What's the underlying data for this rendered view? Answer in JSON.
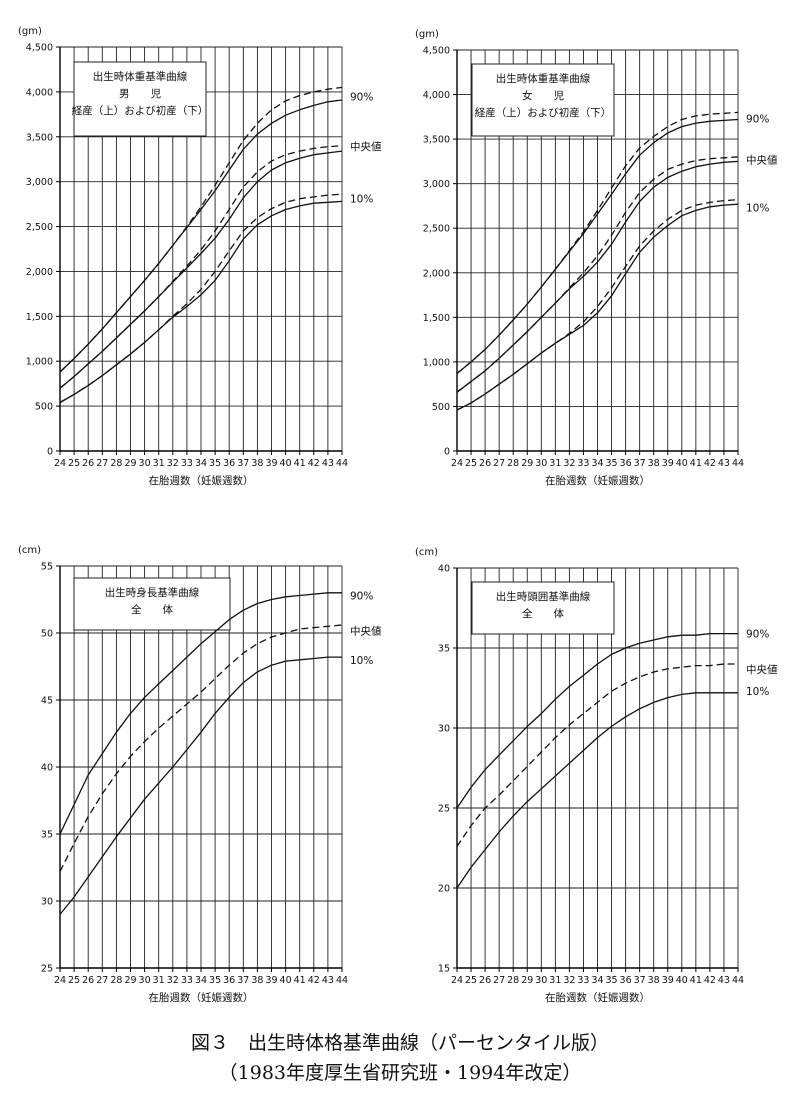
{
  "caption": {
    "line1": "図３　出生時体格基準曲線（パーセンタイル版）",
    "line2": "（1983年度厚生省研究班・1994年改定）"
  },
  "chart_data": [
    {
      "type": "line",
      "unit": "(gm)",
      "title_lines": [
        "出生時体重基準曲線",
        "男　　児",
        "経産（上）および初産（下）"
      ],
      "xlabel": "在胎週数（妊娠週数）",
      "x": [
        24,
        25,
        26,
        27,
        28,
        29,
        30,
        31,
        32,
        33,
        34,
        35,
        36,
        37,
        38,
        39,
        40,
        41,
        42,
        43,
        44
      ],
      "xlim": [
        24,
        44
      ],
      "ylim": [
        0,
        4500
      ],
      "yticks": [
        0,
        500,
        1000,
        1500,
        2000,
        2500,
        3000,
        3500,
        4000,
        4500
      ],
      "ytick_labels": [
        "0",
        "500",
        "1,000",
        "1,500",
        "2,000",
        "2,500",
        "3,000",
        "3,500",
        "4,000",
        "4,500"
      ],
      "grid": true,
      "series": [
        {
          "style": "dashed",
          "values": [
            880,
            1030,
            1190,
            1360,
            1540,
            1720,
            1900,
            2090,
            2290,
            2500,
            2720,
            2960,
            3210,
            3460,
            3650,
            3800,
            3900,
            3960,
            4000,
            4030,
            4050
          ]
        },
        {
          "style": "solid",
          "values": [
            880,
            1030,
            1190,
            1360,
            1540,
            1720,
            1900,
            2090,
            2290,
            2490,
            2690,
            2900,
            3130,
            3360,
            3530,
            3650,
            3740,
            3800,
            3850,
            3890,
            3910
          ]
        },
        {
          "style": "dashed",
          "values": [
            700,
            830,
            970,
            1110,
            1260,
            1410,
            1560,
            1720,
            1890,
            2060,
            2240,
            2450,
            2690,
            2940,
            3110,
            3230,
            3300,
            3340,
            3370,
            3390,
            3400
          ]
        },
        {
          "style": "solid",
          "values": [
            700,
            830,
            970,
            1110,
            1260,
            1410,
            1560,
            1720,
            1880,
            2040,
            2200,
            2370,
            2580,
            2820,
            3000,
            3130,
            3210,
            3260,
            3300,
            3320,
            3340
          ]
        },
        {
          "style": "dashed",
          "values": [
            540,
            630,
            730,
            840,
            960,
            1080,
            1210,
            1350,
            1500,
            1640,
            1800,
            2000,
            2230,
            2450,
            2600,
            2700,
            2770,
            2810,
            2830,
            2850,
            2860
          ]
        },
        {
          "style": "solid",
          "values": [
            540,
            630,
            730,
            840,
            960,
            1080,
            1210,
            1350,
            1490,
            1610,
            1740,
            1900,
            2120,
            2360,
            2520,
            2620,
            2690,
            2730,
            2760,
            2770,
            2780
          ]
        }
      ],
      "curve_labels": [
        {
          "text": "90%",
          "y": 3950
        },
        {
          "text": "中央値",
          "y": 3400
        },
        {
          "text": "10%",
          "y": 2810
        }
      ]
    },
    {
      "type": "line",
      "unit": "(gm)",
      "title_lines": [
        "出生時体重基準曲線",
        "女　　児",
        "経産（上）および初産（下）"
      ],
      "xlabel": "在胎週数（妊娠週数）",
      "x": [
        24,
        25,
        26,
        27,
        28,
        29,
        30,
        31,
        32,
        33,
        34,
        35,
        36,
        37,
        38,
        39,
        40,
        41,
        42,
        43,
        44
      ],
      "xlim": [
        24,
        44
      ],
      "ylim": [
        0,
        4500
      ],
      "yticks": [
        0,
        500,
        1000,
        1500,
        2000,
        2500,
        3000,
        3500,
        4000,
        4500
      ],
      "ytick_labels": [
        "0",
        "500",
        "1,000",
        "1,500",
        "2,000",
        "2,500",
        "3,000",
        "3,500",
        "4,000",
        "4,500"
      ],
      "grid": true,
      "series": [
        {
          "style": "dashed",
          "values": [
            870,
            1000,
            1140,
            1300,
            1470,
            1650,
            1840,
            2040,
            2250,
            2460,
            2700,
            2950,
            3200,
            3400,
            3530,
            3640,
            3720,
            3760,
            3780,
            3790,
            3800
          ]
        },
        {
          "style": "solid",
          "values": [
            870,
            1000,
            1140,
            1300,
            1470,
            1650,
            1840,
            2040,
            2240,
            2440,
            2660,
            2880,
            3110,
            3320,
            3460,
            3570,
            3640,
            3680,
            3700,
            3710,
            3720
          ]
        },
        {
          "style": "dashed",
          "values": [
            660,
            780,
            900,
            1040,
            1190,
            1340,
            1500,
            1660,
            1830,
            2000,
            2190,
            2420,
            2680,
            2900,
            3050,
            3160,
            3220,
            3260,
            3280,
            3290,
            3300
          ]
        },
        {
          "style": "solid",
          "values": [
            660,
            780,
            900,
            1040,
            1190,
            1340,
            1500,
            1660,
            1820,
            1960,
            2120,
            2320,
            2570,
            2800,
            2960,
            3070,
            3140,
            3190,
            3220,
            3240,
            3250
          ]
        },
        {
          "style": "dashed",
          "values": [
            460,
            540,
            640,
            750,
            860,
            980,
            1100,
            1210,
            1320,
            1450,
            1620,
            1830,
            2070,
            2300,
            2470,
            2600,
            2700,
            2760,
            2790,
            2810,
            2820
          ]
        },
        {
          "style": "solid",
          "values": [
            460,
            540,
            640,
            750,
            860,
            980,
            1100,
            1210,
            1310,
            1410,
            1550,
            1740,
            1990,
            2230,
            2400,
            2530,
            2640,
            2700,
            2740,
            2760,
            2770
          ]
        }
      ],
      "curve_labels": [
        {
          "text": "90%",
          "y": 3730
        },
        {
          "text": "中央値",
          "y": 3270
        },
        {
          "text": "10%",
          "y": 2730
        }
      ]
    },
    {
      "type": "line",
      "unit": "(cm)",
      "title_lines": [
        "出生時身長基準曲線",
        "全　　体"
      ],
      "xlabel": "在胎週数（妊娠週数）",
      "x": [
        24,
        25,
        26,
        27,
        28,
        29,
        30,
        31,
        32,
        33,
        34,
        35,
        36,
        37,
        38,
        39,
        40,
        41,
        42,
        43,
        44
      ],
      "xlim": [
        24,
        44
      ],
      "ylim": [
        25,
        55
      ],
      "yticks": [
        25,
        30,
        35,
        40,
        45,
        50,
        55
      ],
      "ytick_labels": [
        "25",
        "30",
        "35",
        "40",
        "45",
        "50",
        "55"
      ],
      "grid": true,
      "series": [
        {
          "style": "solid",
          "values": [
            35.0,
            37.2,
            39.4,
            41.0,
            42.6,
            44.0,
            45.2,
            46.2,
            47.2,
            48.2,
            49.2,
            50.1,
            51.0,
            51.7,
            52.2,
            52.5,
            52.7,
            52.8,
            52.9,
            53.0,
            53.0
          ]
        },
        {
          "style": "dashed",
          "values": [
            32.2,
            34.3,
            36.3,
            38.0,
            39.5,
            40.8,
            41.9,
            42.9,
            43.8,
            44.7,
            45.6,
            46.6,
            47.6,
            48.5,
            49.2,
            49.7,
            50.0,
            50.3,
            50.4,
            50.5,
            50.6
          ]
        },
        {
          "style": "solid",
          "values": [
            29.0,
            30.3,
            31.8,
            33.3,
            34.8,
            36.2,
            37.6,
            38.8,
            40.0,
            41.3,
            42.6,
            44.0,
            45.2,
            46.3,
            47.1,
            47.6,
            47.9,
            48.0,
            48.1,
            48.2,
            48.2
          ]
        }
      ],
      "curve_labels": [
        {
          "text": "90%",
          "y": 52.8
        },
        {
          "text": "中央値",
          "y": 50.2
        },
        {
          "text": "10%",
          "y": 48.0
        }
      ]
    },
    {
      "type": "line",
      "unit": "(cm)",
      "title_lines": [
        "出生時頭囲基準曲線",
        "全　　体"
      ],
      "xlabel": "在胎週数（妊娠週数）",
      "x": [
        24,
        25,
        26,
        27,
        28,
        29,
        30,
        31,
        32,
        33,
        34,
        35,
        36,
        37,
        38,
        39,
        40,
        41,
        42,
        43,
        44
      ],
      "xlim": [
        24,
        44
      ],
      "ylim": [
        15,
        40
      ],
      "yticks": [
        15,
        20,
        25,
        30,
        35,
        40
      ],
      "ytick_labels": [
        "15",
        "20",
        "25",
        "30",
        "35",
        "40"
      ],
      "grid": true,
      "series": [
        {
          "style": "solid",
          "values": [
            25.0,
            26.3,
            27.4,
            28.3,
            29.2,
            30.1,
            30.9,
            31.8,
            32.6,
            33.3,
            34.0,
            34.6,
            35.0,
            35.3,
            35.5,
            35.7,
            35.8,
            35.8,
            35.9,
            35.9,
            35.9
          ]
        },
        {
          "style": "dashed",
          "values": [
            22.6,
            23.9,
            25.0,
            25.8,
            26.7,
            27.6,
            28.5,
            29.4,
            30.2,
            30.9,
            31.6,
            32.3,
            32.8,
            33.2,
            33.5,
            33.7,
            33.8,
            33.9,
            33.9,
            34.0,
            34.0
          ]
        },
        {
          "style": "solid",
          "values": [
            20.0,
            21.3,
            22.4,
            23.5,
            24.5,
            25.4,
            26.2,
            27.0,
            27.8,
            28.6,
            29.4,
            30.1,
            30.7,
            31.2,
            31.6,
            31.9,
            32.1,
            32.2,
            32.2,
            32.2,
            32.2
          ]
        }
      ],
      "curve_labels": [
        {
          "text": "90%",
          "y": 35.9
        },
        {
          "text": "中央値",
          "y": 33.7
        },
        {
          "text": "10%",
          "y": 32.3
        }
      ]
    }
  ]
}
